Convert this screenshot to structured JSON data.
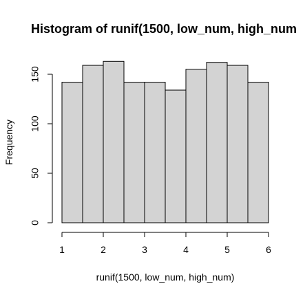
{
  "chart_data": {
    "type": "bar",
    "title": "Histogram of runif(1500, low_num, high_num",
    "xlabel": "runif(1500, low_num, high_num)",
    "ylabel": "Frequency",
    "bins": [
      {
        "start": 1.0,
        "end": 1.5,
        "count": 142
      },
      {
        "start": 1.5,
        "end": 2.0,
        "count": 159
      },
      {
        "start": 2.0,
        "end": 2.5,
        "count": 163
      },
      {
        "start": 2.5,
        "end": 3.0,
        "count": 142
      },
      {
        "start": 3.0,
        "end": 3.5,
        "count": 142
      },
      {
        "start": 3.5,
        "end": 4.0,
        "count": 134
      },
      {
        "start": 4.0,
        "end": 4.5,
        "count": 155
      },
      {
        "start": 4.5,
        "end": 5.0,
        "count": 162
      },
      {
        "start": 5.0,
        "end": 5.5,
        "count": 159
      },
      {
        "start": 5.5,
        "end": 6.0,
        "count": 142
      }
    ],
    "xlim": [
      1,
      6
    ],
    "ylim": [
      0,
      150
    ],
    "x_ticks": [
      "1",
      "2",
      "3",
      "4",
      "5",
      "6"
    ],
    "y_ticks": [
      "0",
      "50",
      "100",
      "150"
    ],
    "bar_fill": "#d3d3d3",
    "bar_stroke": "#000000",
    "grid": false,
    "legend": "none"
  }
}
